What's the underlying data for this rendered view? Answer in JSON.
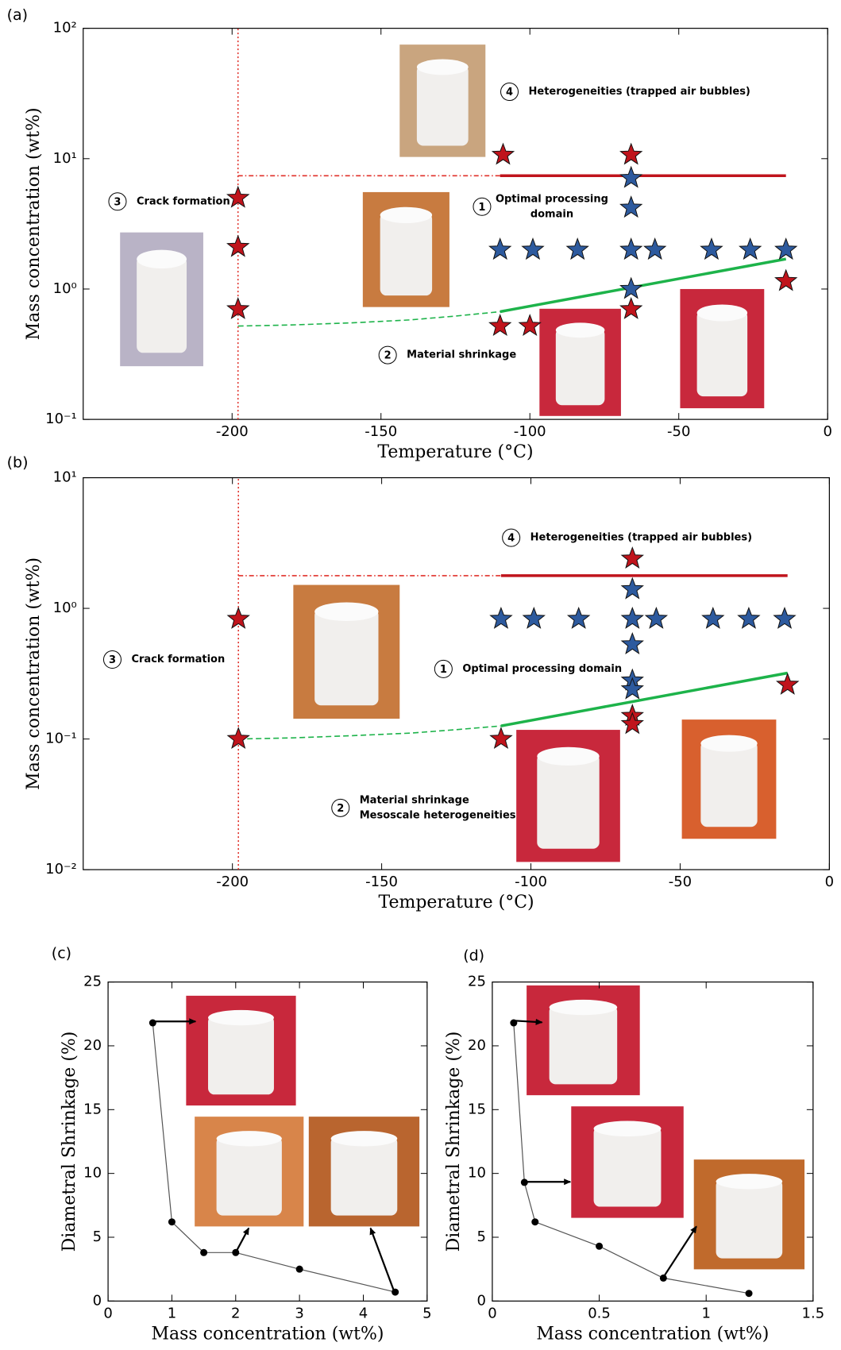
{
  "chart_data": [
    {
      "type": "scatter",
      "label": "(a)",
      "xlabel": "Temperature (°C)",
      "ylabel": "Mass concentration (wt%)",
      "xlim": [
        -250,
        0
      ],
      "xticks": [
        -200,
        -150,
        -100,
        -50,
        0
      ],
      "ylim": [
        0.1,
        100
      ],
      "log_y": true,
      "yticks": [
        {
          "value": 0.1,
          "label": "10⁻¹"
        },
        {
          "value": 1,
          "label": "10⁰"
        },
        {
          "value": 10,
          "label": "10¹"
        },
        {
          "value": 100,
          "label": "10²"
        }
      ],
      "series": [
        {
          "style": "dotted",
          "color": "#e0302a",
          "x": [
            -198,
            -198
          ],
          "values": [
            0.1,
            100
          ]
        },
        {
          "style": "dashdot",
          "color": "#e0302a",
          "x": [
            -198,
            -110
          ],
          "values": [
            7.4,
            7.4
          ]
        },
        {
          "style": "solid",
          "color": "#c0141c",
          "x": [
            -110,
            -14
          ],
          "values": [
            7.4,
            7.4
          ]
        },
        {
          "style": "dashed",
          "color": "#1db34a",
          "x": [
            -198,
            -180,
            -160,
            -140,
            -125,
            -110
          ],
          "values": [
            0.52,
            0.53,
            0.55,
            0.58,
            0.62,
            0.67
          ]
        },
        {
          "style": "solid",
          "color": "#1db34a",
          "x": [
            -110,
            -14
          ],
          "values": [
            0.67,
            1.7
          ]
        },
        {
          "marker": "star",
          "color": "#c0141c",
          "x": [
            -198,
            -198,
            -198,
            -109,
            -66,
            -110,
            -100,
            -66,
            -14
          ],
          "values": [
            5.0,
            2.1,
            0.7,
            10.7,
            10.7,
            0.52,
            0.52,
            0.7,
            1.15
          ]
        },
        {
          "marker": "star",
          "color": "#2d5a9e",
          "x": [
            -66,
            -66,
            -110,
            -99,
            -84,
            -66,
            -58,
            -39,
            -26,
            -14,
            -66
          ],
          "values": [
            7.1,
            4.2,
            2,
            2,
            2,
            2,
            2,
            2,
            2,
            2,
            1.0
          ]
        }
      ],
      "annotations": [
        {
          "number": "4",
          "lines": [
            "Heterogeneities  (trapped air bubbles)"
          ]
        },
        {
          "number": "1",
          "lines": [
            "Optimal processing",
            "domain"
          ]
        },
        {
          "number": "3",
          "lines": [
            "Crack formation"
          ]
        },
        {
          "number": "2",
          "lines": [
            "Material shrinkage"
          ]
        }
      ]
    },
    {
      "type": "scatter",
      "label": "(b)",
      "xlabel": "Temperature (°C)",
      "ylabel": "Mass concentration (wt%)",
      "xlim": [
        -250,
        0
      ],
      "xticks": [
        -200,
        -150,
        -100,
        -50,
        0
      ],
      "ylim": [
        0.01,
        10
      ],
      "log_y": true,
      "yticks": [
        {
          "value": 0.01,
          "label": "10⁻²"
        },
        {
          "value": 0.1,
          "label": "10⁻¹"
        },
        {
          "value": 1,
          "label": "10⁰"
        },
        {
          "value": 10,
          "label": "10¹"
        }
      ],
      "series": [
        {
          "style": "dotted",
          "color": "#e0302a",
          "x": [
            -198,
            -198
          ],
          "values": [
            0.01,
            10
          ]
        },
        {
          "style": "dashdot",
          "color": "#e0302a",
          "x": [
            -198,
            -110
          ],
          "values": [
            1.78,
            1.78
          ]
        },
        {
          "style": "solid",
          "color": "#c0141c",
          "x": [
            -110,
            -14
          ],
          "values": [
            1.78,
            1.78
          ]
        },
        {
          "style": "dashed",
          "color": "#1db34a",
          "x": [
            -198,
            -180,
            -160,
            -140,
            -125,
            -110
          ],
          "values": [
            0.1,
            0.102,
            0.106,
            0.111,
            0.118,
            0.126
          ]
        },
        {
          "style": "solid",
          "color": "#1db34a",
          "x": [
            -110,
            -14
          ],
          "values": [
            0.126,
            0.32
          ]
        },
        {
          "marker": "star",
          "color": "#c0141c",
          "x": [
            -198,
            -198,
            -66,
            -110,
            -66,
            -66,
            -14
          ],
          "values": [
            0.83,
            0.1,
            2.4,
            0.1,
            0.15,
            0.13,
            0.26
          ]
        },
        {
          "marker": "star",
          "color": "#2d5a9e",
          "x": [
            -66,
            -110,
            -99,
            -84,
            -66,
            -58,
            -39,
            -27,
            -15,
            -66,
            -66,
            -66
          ],
          "values": [
            1.4,
            0.83,
            0.83,
            0.83,
            0.83,
            0.83,
            0.83,
            0.83,
            0.83,
            0.53,
            0.28,
            0.24
          ]
        }
      ],
      "annotations": [
        {
          "number": "4",
          "lines": [
            "Heterogeneities  (trapped air bubbles)"
          ]
        },
        {
          "number": "3",
          "lines": [
            "Crack formation"
          ]
        },
        {
          "number": "1",
          "lines": [
            "Optimal processing domain"
          ]
        },
        {
          "number": "2",
          "lines": [
            "Material shrinkage",
            "Mesoscale heterogeneities"
          ]
        }
      ]
    },
    {
      "type": "line",
      "label": "(c)",
      "xlabel": "Mass concentration (wt%)",
      "ylabel": "Diametral Shrinkage (%)",
      "xlim": [
        0,
        5
      ],
      "xticks": [
        0,
        1,
        2,
        3,
        4,
        5
      ],
      "ylim": [
        0,
        25
      ],
      "yticks": [
        0,
        5,
        10,
        15,
        20,
        25
      ],
      "series": [
        {
          "style": "solid",
          "marker": "circle",
          "color": "#555555",
          "x": [
            0.7,
            1,
            1.5,
            2,
            3,
            4.5
          ],
          "values": [
            21.8,
            6.2,
            3.8,
            3.8,
            2.5,
            0.7
          ]
        }
      ]
    },
    {
      "type": "line",
      "label": "(d)",
      "xlabel": "Mass concentration (wt%)",
      "ylabel": "Diametral Shrinkage (%)",
      "xlim": [
        0,
        1.5
      ],
      "xticks": [
        0,
        0.5,
        1,
        1.5
      ],
      "ylim": [
        0,
        25
      ],
      "yticks": [
        0,
        5,
        10,
        15,
        20,
        25
      ],
      "series": [
        {
          "style": "solid",
          "marker": "circle",
          "color": "#555555",
          "x": [
            0.1,
            0.15,
            0.2,
            0.5,
            0.8,
            1.2
          ],
          "values": [
            21.8,
            9.3,
            6.2,
            4.3,
            1.8,
            0.6
          ]
        }
      ]
    }
  ]
}
